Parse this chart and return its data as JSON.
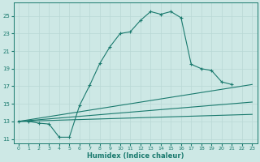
{
  "xlabel": "Humidex (Indice chaleur)",
  "background_color": "#cde8e5",
  "line_color": "#1a7a6e",
  "grid_color": "#b8d8d5",
  "xlim": [
    -0.5,
    23.5
  ],
  "ylim": [
    10.5,
    26.5
  ],
  "yticks": [
    11,
    13,
    15,
    17,
    19,
    21,
    23,
    25
  ],
  "xticks": [
    0,
    1,
    2,
    3,
    4,
    5,
    6,
    7,
    8,
    9,
    10,
    11,
    12,
    13,
    14,
    15,
    16,
    17,
    18,
    19,
    20,
    21,
    22,
    23
  ],
  "line1_x": [
    0,
    1,
    2,
    3,
    4,
    5,
    6,
    7,
    8,
    9,
    10,
    11,
    12,
    13,
    14,
    15,
    16,
    17,
    18,
    19,
    20,
    21
  ],
  "line1_y": [
    13,
    13,
    12.8,
    12.7,
    11.2,
    11.2,
    14.8,
    17.1,
    19.6,
    21.5,
    23.0,
    23.2,
    24.5,
    25.5,
    25.2,
    25.5,
    24.8,
    19.5,
    19.0,
    18.8,
    17.5,
    17.2
  ],
  "line2_x": [
    0,
    23
  ],
  "line2_y": [
    13,
    17.2
  ],
  "line3_x": [
    0,
    23
  ],
  "line3_y": [
    13,
    15.2
  ],
  "line4_x": [
    0,
    23
  ],
  "line4_y": [
    13,
    13.8
  ]
}
